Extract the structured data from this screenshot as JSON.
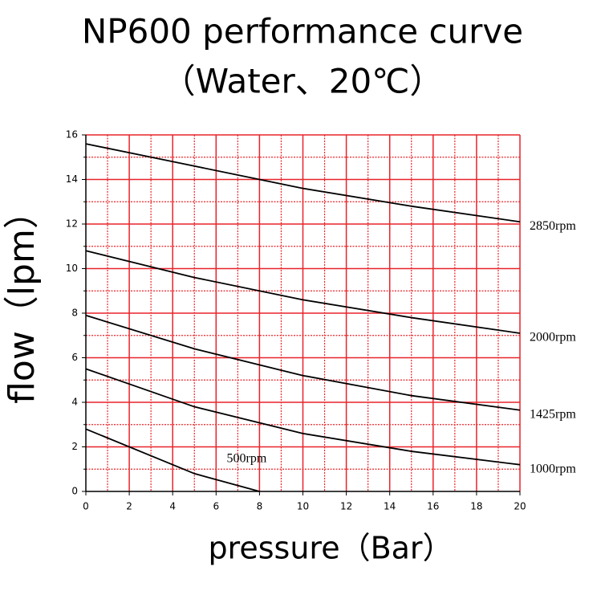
{
  "chart_data": {
    "type": "line",
    "title": "NP600 performance curve",
    "subtitle": "（Water、20℃）",
    "x_label": "pressure（Bar）",
    "y_label": "flow（lpm）",
    "xlim": [
      0,
      20
    ],
    "xticks": [
      0,
      2,
      4,
      6,
      8,
      10,
      12,
      14,
      16,
      18,
      20
    ],
    "ylim": [
      0,
      16
    ],
    "yticks": [
      0,
      2,
      4,
      6,
      8,
      10,
      12,
      14,
      16
    ],
    "grid": true,
    "grid_color": "#e8242a",
    "series": [
      {
        "name": "2850rpm",
        "color": "#000000",
        "x": [
          0,
          4,
          8,
          10,
          15,
          20
        ],
        "values": [
          15.6,
          14.8,
          14.0,
          13.6,
          12.8,
          12.1
        ]
      },
      {
        "name": "2000rpm",
        "color": "#000000",
        "x": [
          0,
          5,
          10,
          15,
          20
        ],
        "values": [
          10.8,
          9.6,
          8.6,
          7.8,
          7.1
        ]
      },
      {
        "name": "1425rpm",
        "color": "#000000",
        "x": [
          0,
          5,
          10,
          15,
          20
        ],
        "values": [
          7.9,
          6.4,
          5.2,
          4.3,
          3.65
        ]
      },
      {
        "name": "1000rpm",
        "color": "#000000",
        "x": [
          0,
          5,
          10,
          15,
          20
        ],
        "values": [
          5.5,
          3.8,
          2.6,
          1.8,
          1.2
        ]
      },
      {
        "name": "500rpm",
        "color": "#000000",
        "x": [
          0,
          5,
          8
        ],
        "values": [
          2.8,
          0.8,
          0
        ]
      }
    ]
  }
}
